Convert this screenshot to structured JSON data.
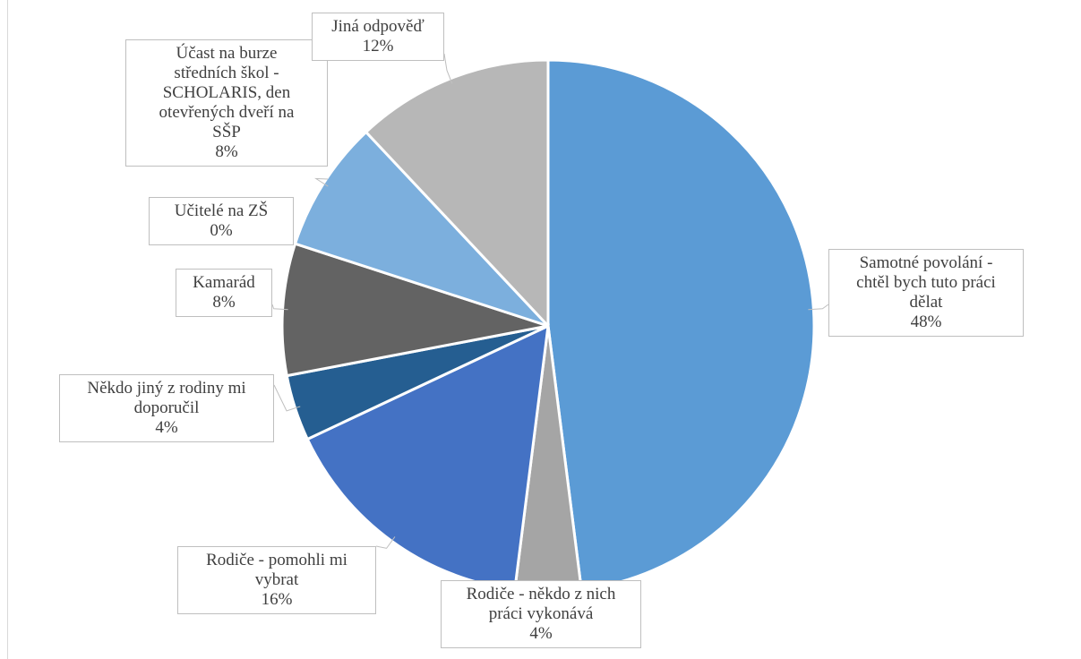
{
  "chart_data": {
    "type": "pie",
    "title": "",
    "slices": [
      {
        "label": "Samotné povolání - chtěl bych tuto práci dělat",
        "label_lines": [
          "Samotné povolání -",
          "chtěl bych tuto práci",
          "dělat"
        ],
        "value": 48,
        "percent_label": "48%",
        "color": "#5b9bd5"
      },
      {
        "label": "Rodiče - někdo z nich práci vykonává",
        "label_lines": [
          "Rodiče - někdo z nich",
          "práci vykonává"
        ],
        "value": 4,
        "percent_label": "4%",
        "color": "#a5a5a5"
      },
      {
        "label": "Rodiče - pomohli mi vybrat",
        "label_lines": [
          "Rodiče - pomohli mi",
          "vybrat"
        ],
        "value": 16,
        "percent_label": "16%",
        "color": "#4472c4"
      },
      {
        "label": "Někdo jiný z rodiny mi doporučil",
        "label_lines": [
          "Někdo jiný z rodiny mi",
          "doporučil"
        ],
        "value": 4,
        "percent_label": "4%",
        "color": "#255e91"
      },
      {
        "label": "Kamarád",
        "label_lines": [
          "Kamarád"
        ],
        "value": 8,
        "percent_label": "8%",
        "color": "#636363"
      },
      {
        "label": "Učitelé na ZŠ",
        "label_lines": [
          "Učitelé na ZŠ"
        ],
        "value": 0,
        "percent_label": "0%",
        "color": "#264478"
      },
      {
        "label": "Účast na burze středních škol - SCHOLARIS, den otevřených dveří na SŠP",
        "label_lines": [
          "Účast na burze",
          "středních škol -",
          "SCHOLARIS, den",
          "otevřených dveří na",
          "SŠP"
        ],
        "value": 8,
        "percent_label": "8%",
        "color": "#7cafdd"
      },
      {
        "label": "Jiná odpověď",
        "label_lines": [
          "Jiná odpověď"
        ],
        "value": 12,
        "percent_label": "12%",
        "color": "#b7b7b7"
      }
    ],
    "legend": "none"
  }
}
